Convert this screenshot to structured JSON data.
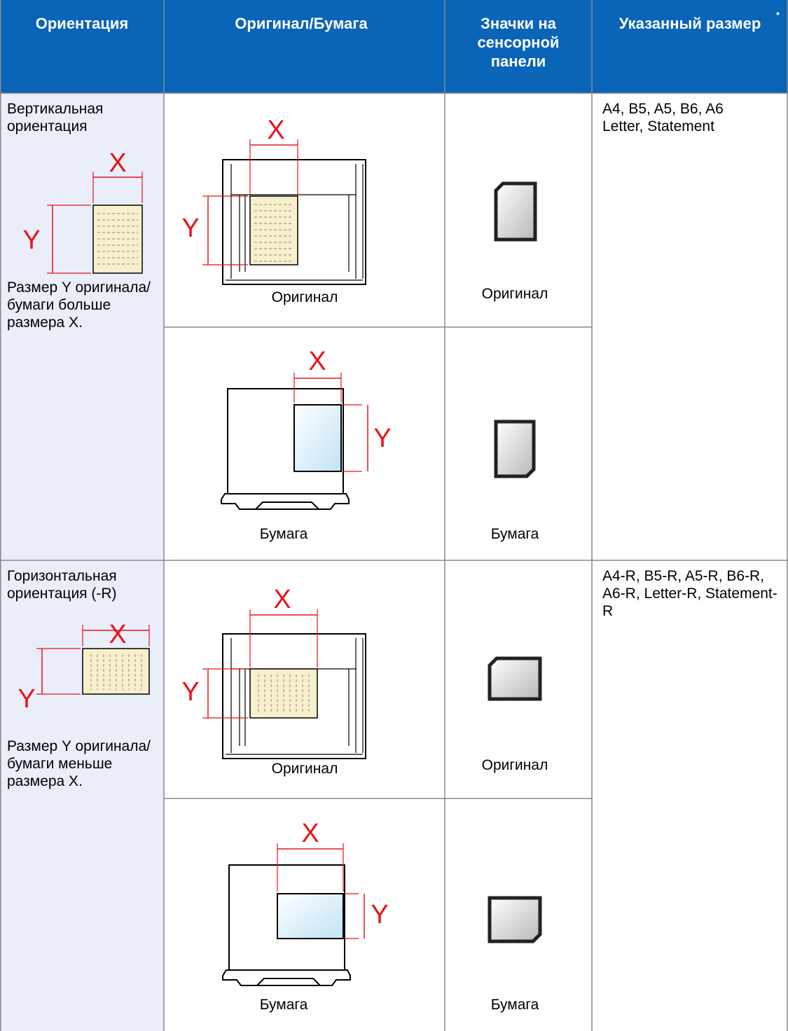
{
  "table": {
    "headers": [
      "Ориентация",
      "Оригинал/Бумага",
      "Значки на сенсорной панели",
      "Указанный размер"
    ],
    "header_note": "*",
    "rows": [
      {
        "orientation": "Вертикальная ориентация",
        "description": "Размер Y оригинала/бумаги больше размера X.",
        "sizes": [
          "A4, B5, A5, B6, A6",
          "Letter, Statement"
        ],
        "original_label": "Оригинал",
        "paper_label": "Бумага",
        "icon_original_label": "Оригинал",
        "icon_paper_label": "Бумага"
      },
      {
        "orientation": "Горизонтальная ориентация (-R)",
        "description": "Размер Y оригинала/бумаги меньше размера X.",
        "sizes": [
          "A4-R, B5-R, A5-R, B6-R, A6-R, Letter-R, Statement-R"
        ],
        "original_label": "Оригинал",
        "paper_label": "Бумага",
        "icon_original_label": "Оригинал",
        "icon_paper_label": "Бумага"
      }
    ]
  },
  "dimension_labels": {
    "x": "X",
    "y": "Y"
  }
}
